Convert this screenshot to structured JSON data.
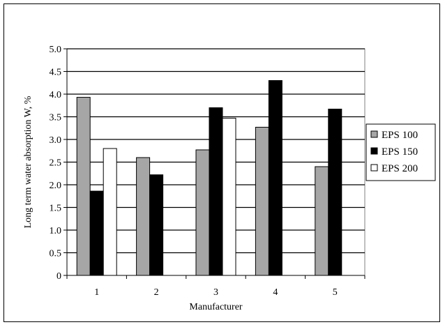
{
  "chart_data": {
    "type": "bar",
    "title": "",
    "xlabel": "Manufacturer",
    "ylabel": "Long term water absorption W, %",
    "categories": [
      "1",
      "2",
      "3",
      "4",
      "5"
    ],
    "ylim": [
      0,
      5.0
    ],
    "yticks": [
      "0",
      "0.5",
      "1.0",
      "1.5",
      "2.0",
      "2.5",
      "3.0",
      "3.5",
      "4.0",
      "4.5",
      "5.0"
    ],
    "grid": "horizontal",
    "legend_position": "right",
    "series": [
      {
        "name": "EPS 100",
        "color": "#a6a6a6",
        "values": [
          3.93,
          2.6,
          2.77,
          3.27,
          2.4
        ]
      },
      {
        "name": "EPS 150",
        "color": "#000000",
        "values": [
          1.86,
          2.22,
          3.7,
          4.3,
          3.67
        ]
      },
      {
        "name": "EPS 200",
        "color": "#ffffff",
        "values": [
          2.8,
          null,
          3.47,
          null,
          null
        ]
      }
    ]
  }
}
